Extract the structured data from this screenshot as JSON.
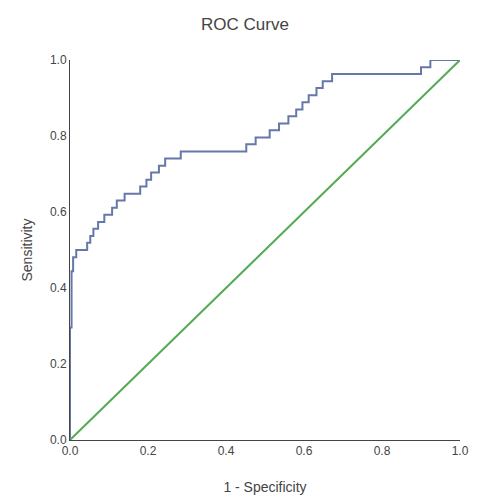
{
  "chart_data": {
    "type": "line",
    "title": "ROC Curve",
    "xlabel": "1 - Specificity",
    "ylabel": "Sensitivity",
    "xlim": [
      0.0,
      1.0
    ],
    "ylim": [
      0.0,
      1.0
    ],
    "xticks": [
      {
        "value": 0.0,
        "label": "0.0"
      },
      0.2,
      0.4,
      0.6,
      0.8,
      {
        "value": 1.0,
        "label": "1.0"
      }
    ],
    "yticks": [
      {
        "value": 0.0,
        "label": "0.0"
      },
      0.2,
      0.4,
      0.6,
      0.8,
      {
        "value": 1.0,
        "label": "1.0"
      }
    ],
    "grid": false,
    "series": [
      {
        "type": "step",
        "color": "#6677aa",
        "x": [
          0.0,
          0.0,
          0.0,
          0.004,
          0.004,
          0.008,
          0.008,
          0.016,
          0.016,
          0.04,
          0.044,
          0.048,
          0.052,
          0.056,
          0.06,
          0.068,
          0.072,
          0.08,
          0.088,
          0.1,
          0.108,
          0.116,
          0.12,
          0.132,
          0.14,
          0.172,
          0.18,
          0.192,
          0.196,
          0.204,
          0.208,
          0.22,
          0.228,
          0.236,
          0.244,
          0.276,
          0.284,
          0.448,
          0.452,
          0.468,
          0.476,
          0.5,
          0.512,
          0.524,
          0.536,
          0.548,
          0.56,
          0.572,
          0.58,
          0.588,
          0.596,
          0.608,
          0.612,
          0.624,
          0.632,
          0.64,
          0.648,
          0.66,
          0.672,
          0.772,
          0.896,
          0.9,
          0.924,
          0.924,
          1.0
        ],
        "values": [
          0.0,
          0.222,
          0.296,
          0.296,
          0.444,
          0.444,
          0.481,
          0.481,
          0.5,
          0.5,
          0.519,
          0.519,
          0.537,
          0.537,
          0.556,
          0.556,
          0.574,
          0.574,
          0.593,
          0.593,
          0.611,
          0.611,
          0.63,
          0.63,
          0.648,
          0.648,
          0.667,
          0.667,
          0.685,
          0.685,
          0.704,
          0.704,
          0.722,
          0.722,
          0.741,
          0.741,
          0.759,
          0.759,
          0.778,
          0.778,
          0.796,
          0.796,
          0.815,
          0.815,
          0.833,
          0.833,
          0.852,
          0.852,
          0.87,
          0.87,
          0.889,
          0.889,
          0.907,
          0.907,
          0.926,
          0.926,
          0.944,
          0.944,
          0.963,
          0.963,
          0.963,
          0.981,
          0.981,
          1.0,
          1.0
        ]
      },
      {
        "type": "line",
        "color": "#55aa55",
        "x": [
          0,
          1
        ],
        "values": [
          0,
          1
        ]
      }
    ]
  }
}
